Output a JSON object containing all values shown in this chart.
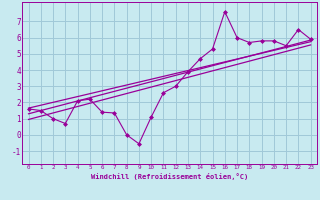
{
  "xlabel": "Windchill (Refroidissement éolien,°C)",
  "ylabel": "",
  "bg_color": "#c8eaf0",
  "grid_color": "#a0c8d8",
  "line_color": "#990099",
  "scatter_color": "#990099",
  "xlim": [
    -0.5,
    23.5
  ],
  "ylim": [
    -1.8,
    8.2
  ],
  "xticks": [
    0,
    1,
    2,
    3,
    4,
    5,
    6,
    7,
    8,
    9,
    10,
    11,
    12,
    13,
    14,
    15,
    16,
    17,
    18,
    19,
    20,
    21,
    22,
    23
  ],
  "yticks": [
    -1,
    0,
    1,
    2,
    3,
    4,
    5,
    6,
    7
  ],
  "data_x": [
    0,
    1,
    2,
    3,
    4,
    5,
    6,
    7,
    8,
    9,
    10,
    11,
    12,
    13,
    14,
    15,
    16,
    17,
    18,
    19,
    20,
    21,
    22,
    23
  ],
  "data_y": [
    1.6,
    1.5,
    1.0,
    0.7,
    2.1,
    2.2,
    1.4,
    1.35,
    0.0,
    -0.55,
    1.1,
    2.6,
    3.0,
    3.9,
    4.7,
    5.3,
    7.6,
    6.0,
    5.7,
    5.8,
    5.8,
    5.5,
    6.5,
    5.9
  ],
  "reg_line": [
    [
      0,
      23
    ],
    [
      1.3,
      5.85
    ]
  ],
  "reg_line2": [
    [
      0,
      23
    ],
    [
      1.65,
      5.75
    ]
  ],
  "reg_line3": [
    [
      0,
      23
    ],
    [
      0.95,
      5.55
    ]
  ]
}
